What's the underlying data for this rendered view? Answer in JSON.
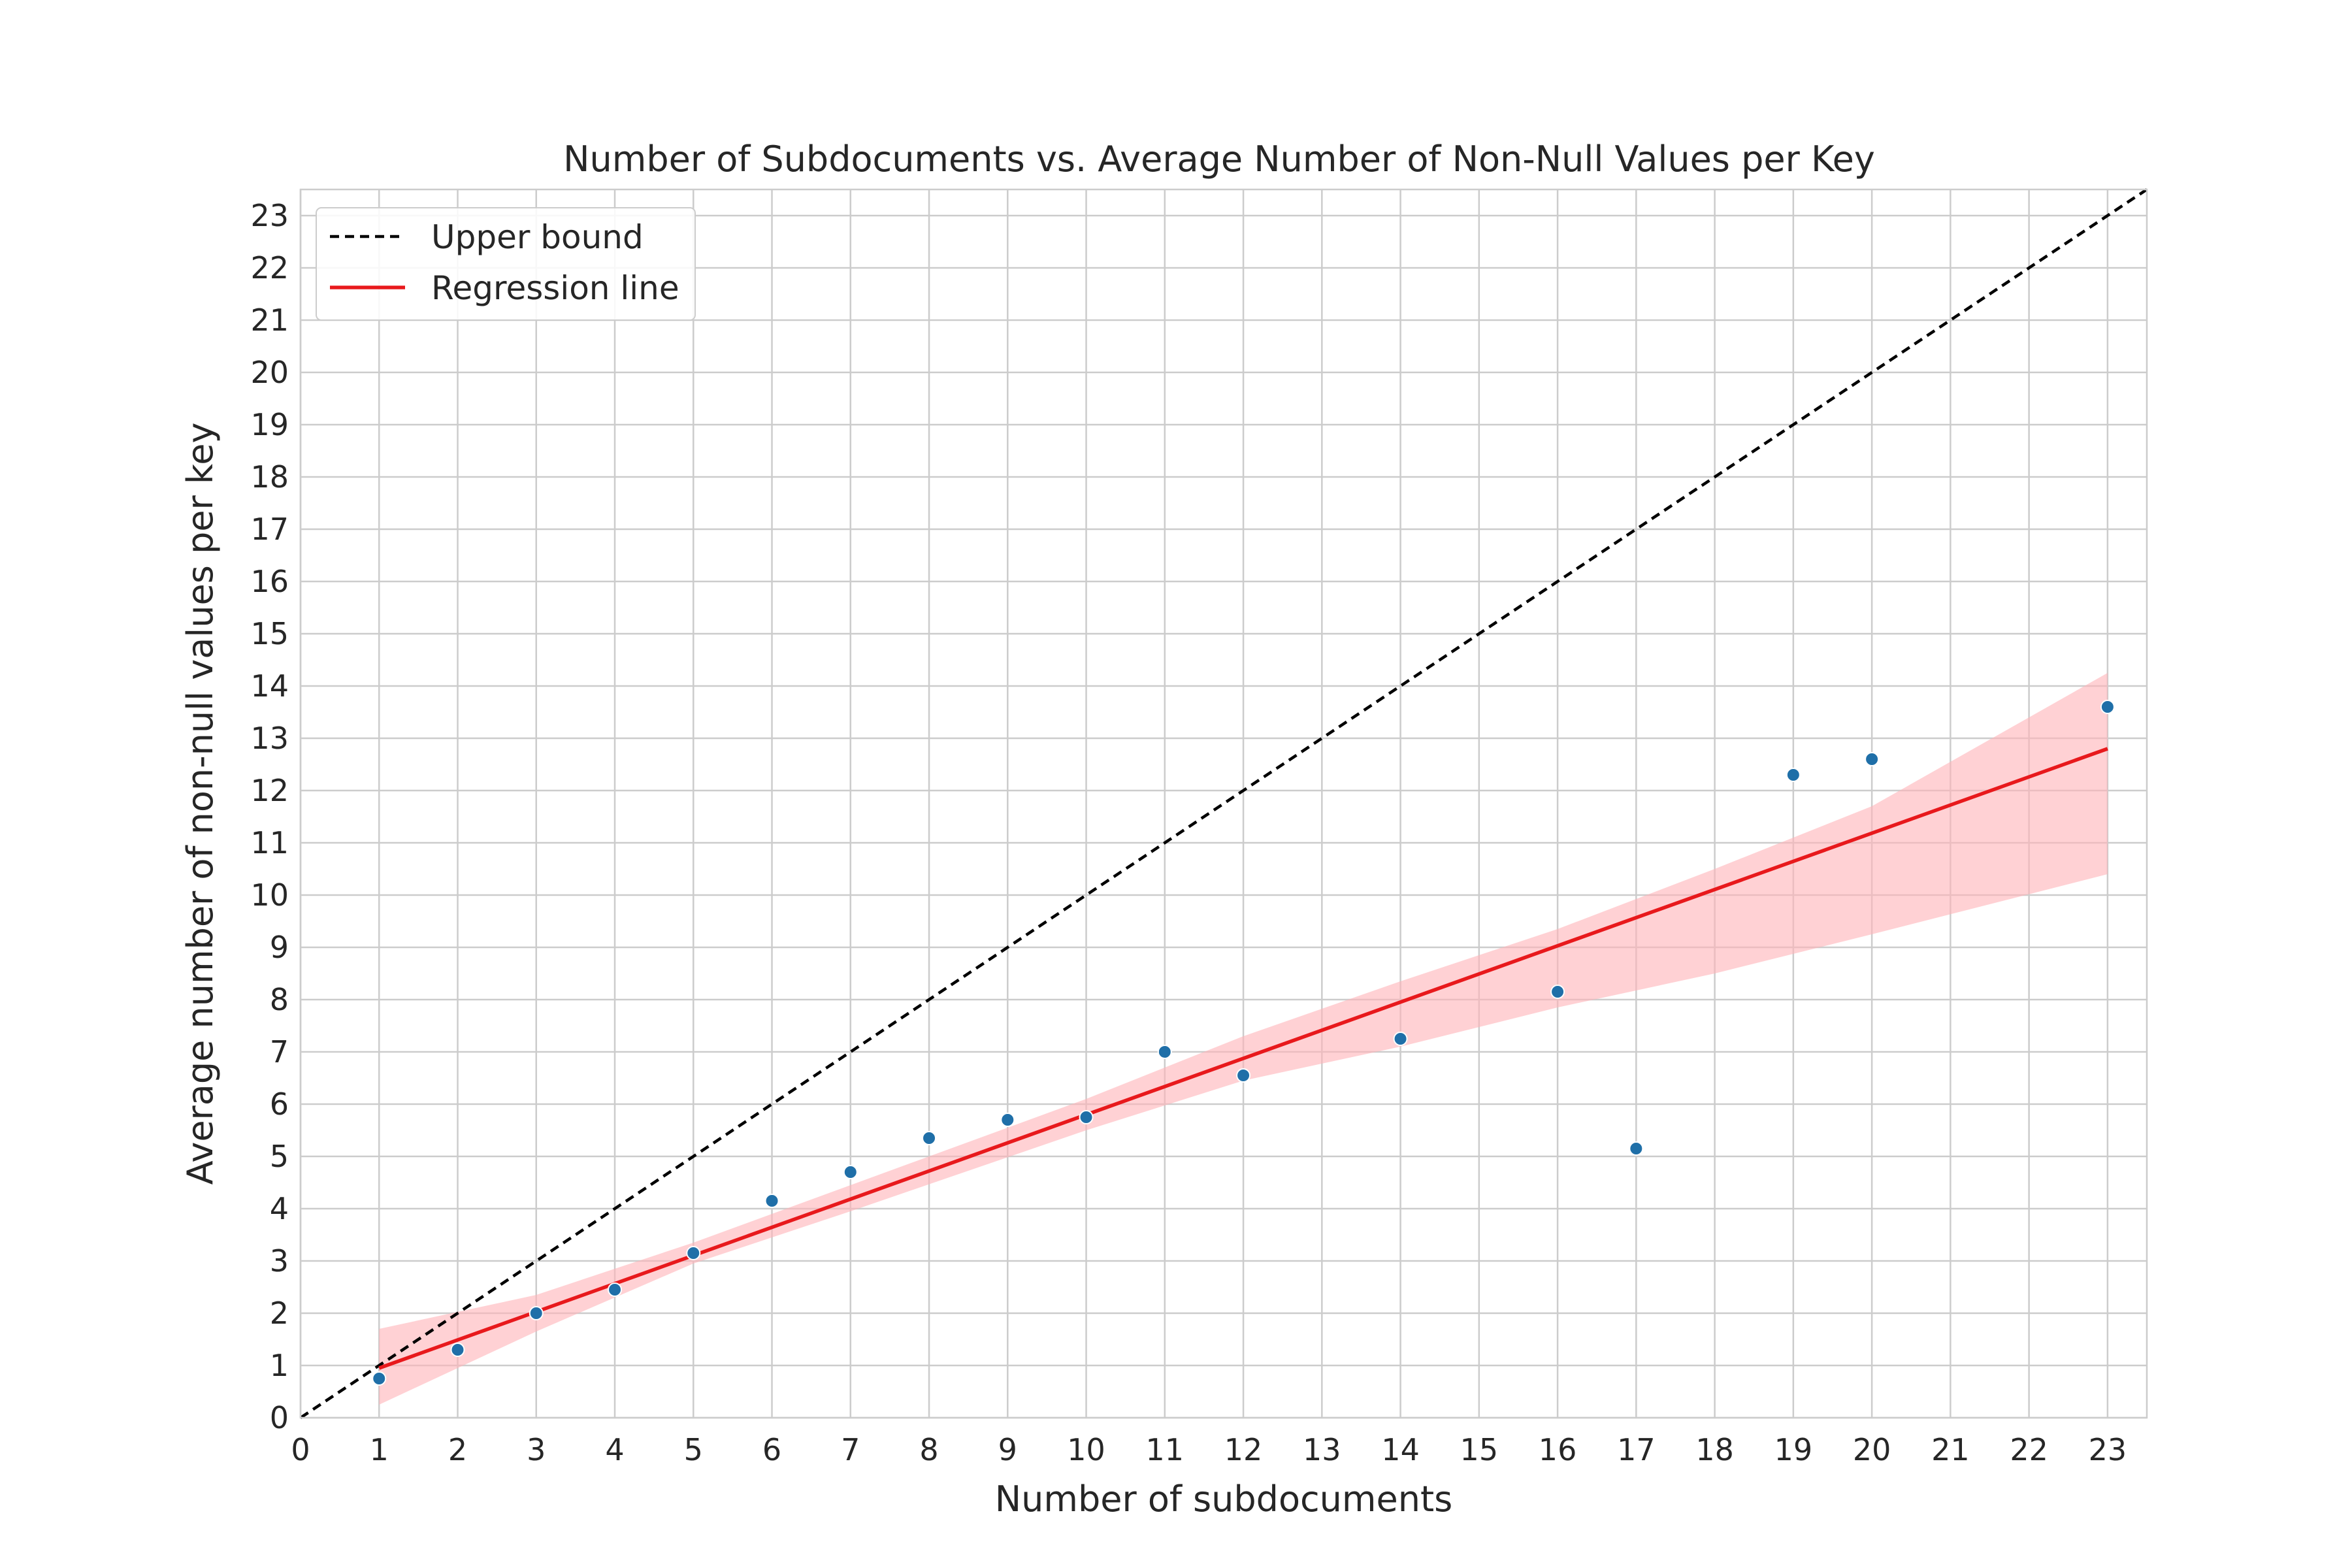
{
  "chart_data": {
    "type": "scatter",
    "title": "Number of Subdocuments vs. Average Number of Non-Null Values per Key",
    "xlabel": "Number of subdocuments",
    "ylabel": "Average number of non-null values per key",
    "xlim": [
      0,
      23.5
    ],
    "ylim": [
      0,
      23.5
    ],
    "x_ticks": [
      0,
      1,
      2,
      3,
      4,
      5,
      6,
      7,
      8,
      9,
      10,
      11,
      12,
      13,
      14,
      15,
      16,
      17,
      18,
      19,
      20,
      21,
      22,
      23
    ],
    "y_ticks": [
      0,
      1,
      2,
      3,
      4,
      5,
      6,
      7,
      8,
      9,
      10,
      11,
      12,
      13,
      14,
      15,
      16,
      17,
      18,
      19,
      20,
      21,
      22,
      23
    ],
    "grid": true,
    "legend_position": "top-left",
    "points": {
      "color": "#1f6fa8",
      "x": [
        1,
        2,
        3,
        4,
        5,
        6,
        7,
        8,
        9,
        10,
        11,
        12,
        14,
        16,
        17,
        19,
        20,
        23
      ],
      "y": [
        0.75,
        1.3,
        2.0,
        2.45,
        3.15,
        4.15,
        4.7,
        5.35,
        5.7,
        5.75,
        7.0,
        6.55,
        7.25,
        8.15,
        5.15,
        12.3,
        12.6,
        13.6
      ]
    },
    "series": [
      {
        "name": "Upper bound",
        "style": "dashed",
        "color": "#000000",
        "x": [
          0,
          23.5
        ],
        "y": [
          0,
          23.5
        ]
      },
      {
        "name": "Regression line",
        "style": "solid",
        "color": "#e8191c",
        "x": [
          1,
          23
        ],
        "y": [
          0.95,
          12.8
        ]
      }
    ],
    "confidence_band": {
      "color": "#ffb3b8",
      "x": [
        1,
        3,
        5,
        7,
        10,
        12,
        14,
        16,
        18,
        20,
        23
      ],
      "lower": [
        0.25,
        1.65,
        2.95,
        3.95,
        5.5,
        6.45,
        7.1,
        7.85,
        8.5,
        9.25,
        10.4
      ],
      "upper": [
        1.7,
        2.35,
        3.35,
        4.45,
        6.1,
        7.3,
        8.35,
        9.35,
        10.5,
        11.7,
        14.25
      ]
    }
  }
}
